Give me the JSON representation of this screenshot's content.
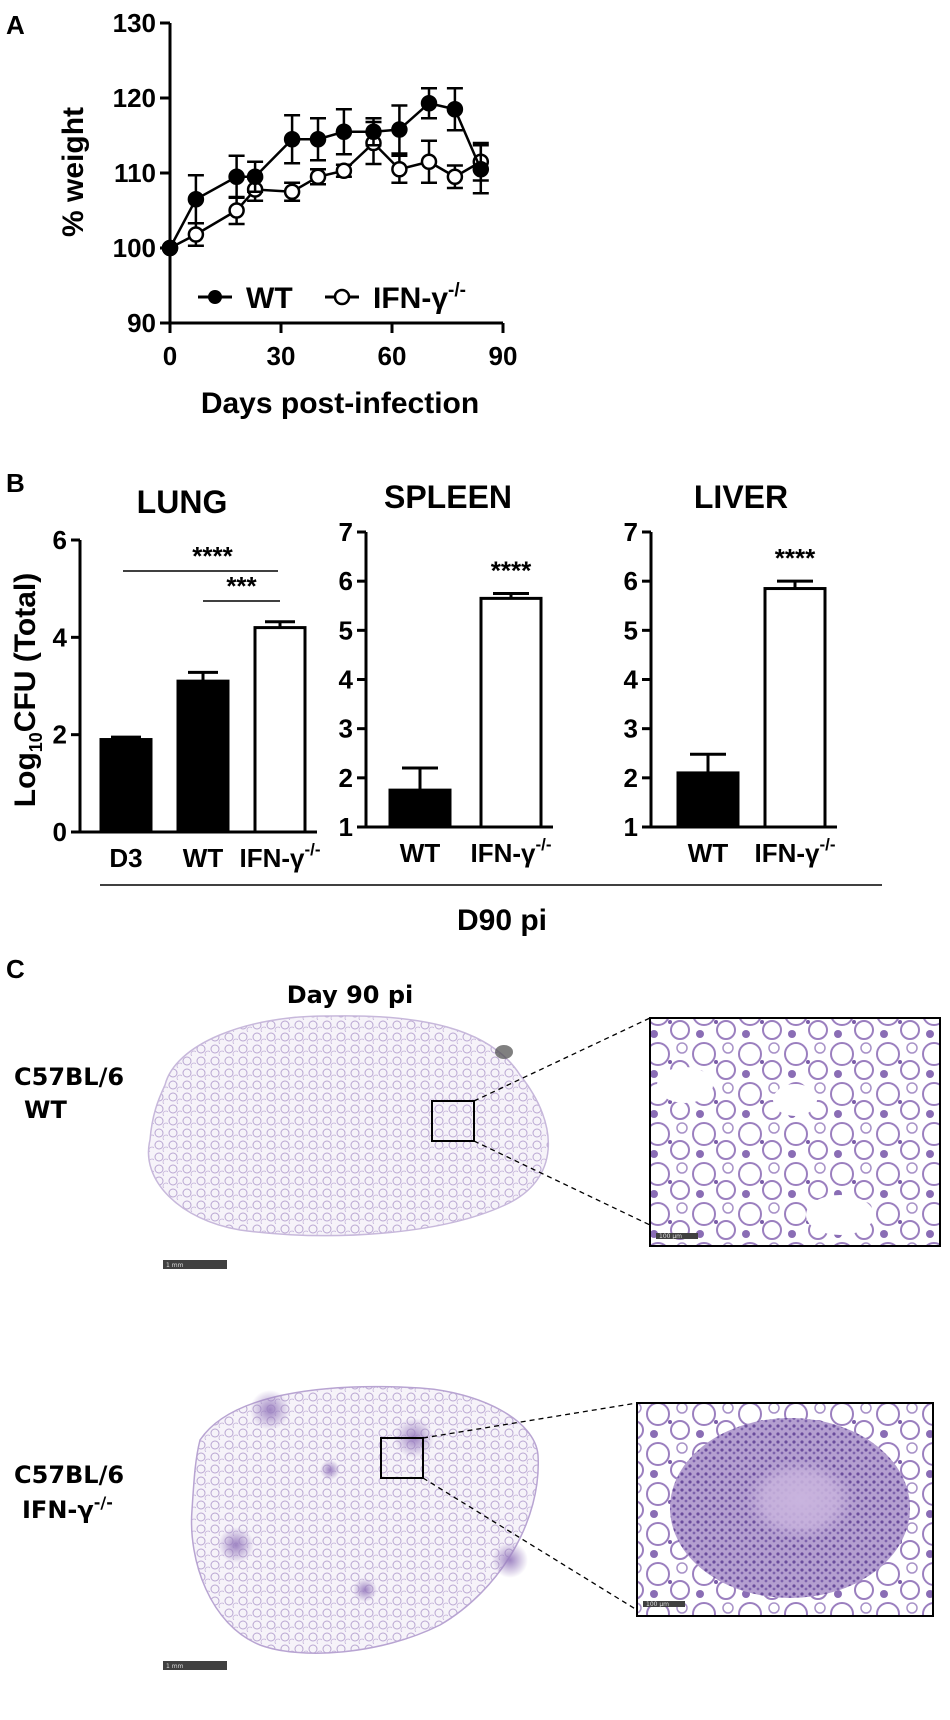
{
  "panel_labels": {
    "a": "A",
    "b": "B",
    "c": "C"
  },
  "colors": {
    "wt": "#000000",
    "ko": "#ffffff",
    "tissue_light": "#e6e0ee",
    "tissue_stain": "#9b7fbf",
    "lesion": "#6a4c9c"
  },
  "chart_data": [
    {
      "type": "line",
      "panel": "A",
      "xlabel": "Days post-infection",
      "ylabel": "% weight",
      "xlim": [
        0,
        90
      ],
      "ylim": [
        90,
        130
      ],
      "x_ticks": [
        "0",
        "30",
        "60",
        "90"
      ],
      "y_ticks": [
        "90",
        "100",
        "110",
        "120",
        "130"
      ],
      "legend_position": "bottom",
      "series": [
        {
          "name": "WT",
          "marker": "filled-circle",
          "x": [
            0,
            7,
            18,
            23,
            33,
            40,
            47,
            55,
            62,
            70,
            77,
            84
          ],
          "y": [
            100,
            106.5,
            109.5,
            109.5,
            114.5,
            114.5,
            115.5,
            115.5,
            115.8,
            119.3,
            118.5,
            110.5
          ],
          "err": [
            0,
            3.2,
            2.8,
            2.0,
            3.2,
            2.8,
            3.0,
            1.8,
            3.2,
            2.0,
            2.8,
            3.2
          ]
        },
        {
          "name": "IFN-γ",
          "name_sup": "-/-",
          "marker": "open-circle",
          "x": [
            0,
            7,
            18,
            23,
            33,
            40,
            47,
            55,
            62,
            70,
            77,
            84
          ],
          "y": [
            100,
            101.8,
            105,
            107.8,
            107.5,
            109.5,
            110.3,
            114,
            110.5,
            111.5,
            109.5,
            111.5
          ],
          "err": [
            0,
            1.5,
            1.8,
            1.5,
            1.2,
            1.0,
            0.8,
            2.8,
            1.8,
            2.8,
            1.5,
            2.5
          ]
        }
      ]
    },
    {
      "type": "bar",
      "panel": "B",
      "title": "LUNG",
      "ylabel": "Log10CFU (Total)",
      "ylim": [
        0,
        6
      ],
      "y_ticks": [
        "0",
        "2",
        "4",
        "6"
      ],
      "categories": [
        "D3",
        "WT",
        "IFN-γ"
      ],
      "category_sup": [
        "",
        "",
        "-/-"
      ],
      "values": [
        1.9,
        3.1,
        4.2
      ],
      "err": [
        0.05,
        0.18,
        0.12
      ],
      "fills": [
        "black",
        "black",
        "white"
      ],
      "annotations": [
        {
          "text": "****",
          "from": 0,
          "to": 2
        },
        {
          "text": "***",
          "from": 1,
          "to": 2
        }
      ]
    },
    {
      "type": "bar",
      "panel": "B",
      "title": "SPLEEN",
      "ylim": [
        1,
        7
      ],
      "y_ticks": [
        "1",
        "2",
        "3",
        "4",
        "5",
        "6",
        "7"
      ],
      "categories": [
        "WT",
        "IFN-γ"
      ],
      "category_sup": [
        "",
        "-/-"
      ],
      "values": [
        1.75,
        5.65
      ],
      "err": [
        0.45,
        0.1
      ],
      "fills": [
        "black",
        "white"
      ],
      "annotations": [
        {
          "text": "****",
          "on": 1
        }
      ]
    },
    {
      "type": "bar",
      "panel": "B",
      "title": "LIVER",
      "ylim": [
        1,
        7
      ],
      "y_ticks": [
        "1",
        "2",
        "3",
        "4",
        "5",
        "6",
        "7"
      ],
      "categories": [
        "WT",
        "IFN-γ"
      ],
      "category_sup": [
        "",
        "-/-"
      ],
      "values": [
        2.1,
        5.85
      ],
      "err": [
        0.38,
        0.15
      ],
      "fills": [
        "black",
        "white"
      ],
      "annotations": [
        {
          "text": "****",
          "on": 1
        }
      ]
    }
  ],
  "panel_b_group_label": "D90 pi",
  "histology": {
    "title": "Day 90 pi",
    "rows": [
      {
        "label_line1": "C57BL/6",
        "label_line2": "WT",
        "sup": ""
      },
      {
        "label_line1": "C57BL/6",
        "label_line2": "IFN-γ",
        "sup": "-/-"
      }
    ],
    "scale_bar_whole": "1 mm",
    "scale_bar_zoom": "100 µm"
  }
}
